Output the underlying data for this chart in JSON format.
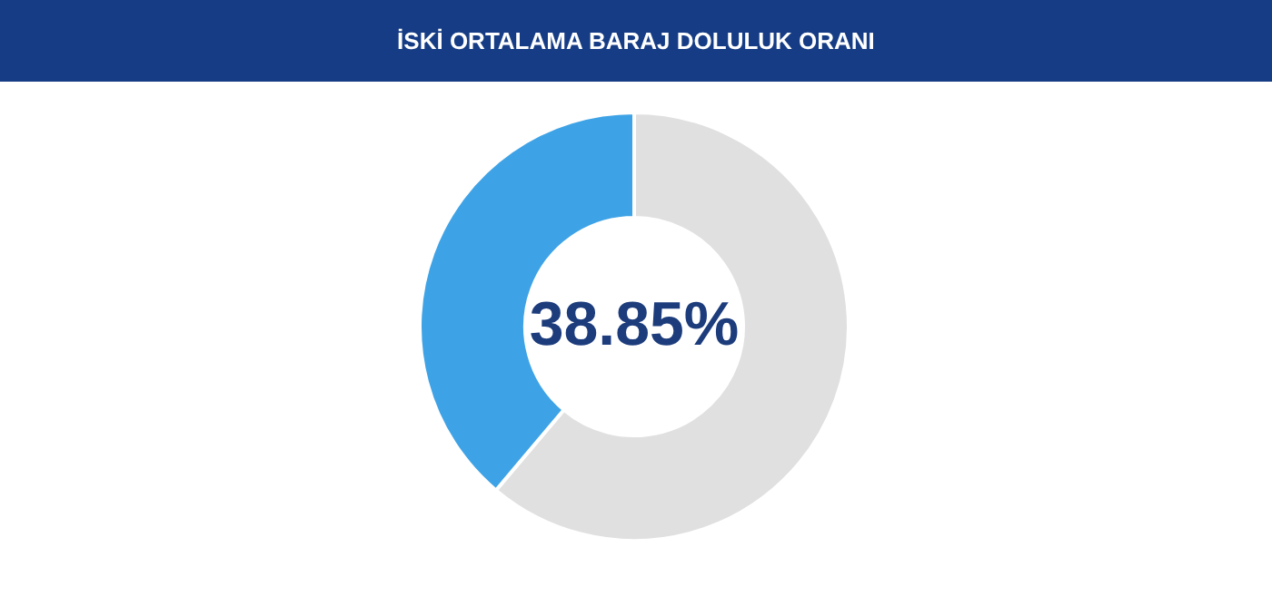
{
  "chart_data": {
    "type": "donut",
    "title": "İSKİ ORTALAMA BARAJ DOLULUK ORANI",
    "categories": [
      null,
      null
    ],
    "values": [
      61.15,
      38.85
    ],
    "colors": [
      "#e0e0e0",
      "#3ea3e6"
    ],
    "value_labels": [
      null,
      "38.85%"
    ]
  }
}
